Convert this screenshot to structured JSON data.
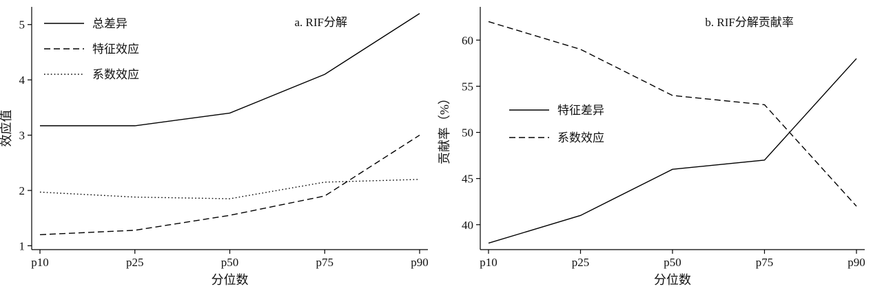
{
  "figure": {
    "background": "#ffffff",
    "line_color": "#000000"
  },
  "chart_data": [
    {
      "type": "line",
      "title": "a. RIF分解",
      "xlabel": "分位数",
      "ylabel": "效应值",
      "categories": [
        "p10",
        "p25",
        "p50",
        "p75",
        "p90"
      ],
      "yticks": [
        1,
        2,
        3,
        4,
        5
      ],
      "ylim": [
        0.93,
        5.32
      ],
      "grid": false,
      "legend_position": "top-left",
      "series": [
        {
          "name": "总差异",
          "line_style": "solid",
          "color": "#000000",
          "values": [
            3.17,
            3.17,
            3.4,
            4.1,
            5.2
          ]
        },
        {
          "name": "特征效应",
          "line_style": "dashed",
          "color": "#000000",
          "values": [
            1.2,
            1.28,
            1.55,
            1.9,
            3.0
          ]
        },
        {
          "name": "系数效应",
          "line_style": "dotted",
          "color": "#000000",
          "values": [
            1.97,
            1.88,
            1.85,
            2.15,
            2.2
          ]
        }
      ]
    },
    {
      "type": "line",
      "title": "b. RIF分解贡献率",
      "xlabel": "分位数",
      "ylabel": "贡献率（%）",
      "categories": [
        "p10",
        "p25",
        "p50",
        "p75",
        "p90"
      ],
      "yticks": [
        40,
        45,
        50,
        55,
        60
      ],
      "ylim": [
        37.3,
        63.6
      ],
      "grid": false,
      "legend_position": "center-left",
      "series": [
        {
          "name": "特征差异",
          "line_style": "solid",
          "color": "#000000",
          "values": [
            38,
            41,
            46,
            47,
            58
          ]
        },
        {
          "name": "系数效应",
          "line_style": "dashed",
          "color": "#000000",
          "values": [
            62,
            59,
            54,
            53,
            42
          ]
        }
      ]
    }
  ]
}
